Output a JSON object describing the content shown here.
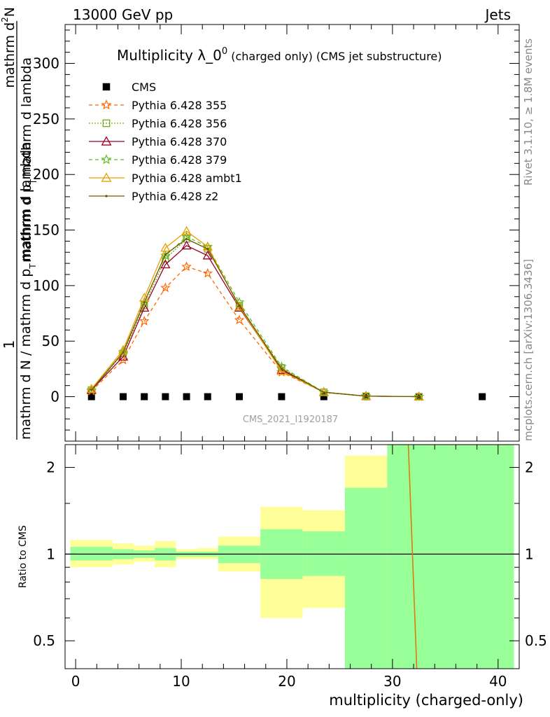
{
  "header": {
    "energy": "13000 GeV pp",
    "category": "Jets",
    "rivet_version": "Rivet 3.1.10, ≥ 1.8M events",
    "mcplots": "mcplots.cern.ch [arXiv:1306.3436]",
    "analysis_id": "CMS_2021_I1920187"
  },
  "chart_data": [
    {
      "panel": "main",
      "type": "scatter",
      "title": {
        "main": "Multiplicity λ_0",
        "sup": "0",
        "detail": " (charged only) (CMS jet substructure)"
      },
      "ylabel": {
        "fraction_numerator": "1",
        "fraction_denominator": "mathrm d N / mathrm d p",
        "denominator_sub": "T",
        "denominator_tail": "mathrm d lambda",
        "numerator_top": "mathrm d",
        "numerator_sup": "2",
        "numerator_N": "N",
        "numerator_mid": "mathrm d p",
        "numerator_sub": "T",
        "numerator_tail": "mathrm d lambda"
      },
      "xlim": [
        -1,
        42
      ],
      "ylim": [
        -40,
        335
      ],
      "yticks": [
        0,
        50,
        100,
        150,
        200,
        250,
        300
      ],
      "xticks": [
        0,
        10,
        20,
        30,
        40
      ],
      "legend_position": "top-left",
      "series": [
        {
          "name": "CMS",
          "color": "#000000",
          "marker": "square",
          "x": [
            1.5,
            4.5,
            6.5,
            8.5,
            10.5,
            12.5,
            15.5,
            19.5,
            23.5,
            27.5,
            32.5,
            38.5
          ],
          "y": [
            0,
            0,
            0,
            0,
            0,
            0,
            0,
            0,
            0,
            0,
            0,
            0
          ]
        },
        {
          "name": "Pythia 6.428 355",
          "color": "#ff6600",
          "marker": "star",
          "dash": "5,4",
          "x": [
            1.5,
            4.5,
            6.5,
            8.5,
            10.5,
            12.5,
            15.5,
            19.5,
            23.5,
            27.5,
            32.5
          ],
          "y": [
            5,
            33,
            68,
            98,
            117,
            111,
            69,
            22,
            4,
            0.5,
            0
          ]
        },
        {
          "name": "Pythia 6.428 356",
          "color": "#7aa61e",
          "marker": "open-square",
          "dash": "2,2",
          "x": [
            1.5,
            4.5,
            6.5,
            8.5,
            10.5,
            12.5,
            15.5,
            19.5,
            23.5,
            27.5,
            32.5
          ],
          "y": [
            6,
            39,
            82,
            124,
            142,
            133,
            82,
            26,
            4,
            0.5,
            0
          ]
        },
        {
          "name": "Pythia 6.428 370",
          "color": "#990022",
          "marker": "open-triangle",
          "dash": "",
          "x": [
            1.5,
            4.5,
            6.5,
            8.5,
            10.5,
            12.5,
            15.5,
            19.5,
            23.5,
            27.5,
            32.5
          ],
          "y": [
            6,
            36,
            80,
            119,
            136,
            127,
            80,
            24,
            4,
            0.5,
            0
          ]
        },
        {
          "name": "Pythia 6.428 379",
          "color": "#66bb22",
          "marker": "star",
          "dash": "5,4",
          "x": [
            1.5,
            4.5,
            6.5,
            8.5,
            10.5,
            12.5,
            15.5,
            19.5,
            23.5,
            27.5,
            32.5
          ],
          "y": [
            6,
            40,
            85,
            127,
            144,
            135,
            85,
            27,
            4,
            0.5,
            0
          ]
        },
        {
          "name": "Pythia 6.428 ambt1",
          "color": "#e8a000",
          "marker": "open-triangle",
          "dash": "",
          "x": [
            1.5,
            4.5,
            6.5,
            8.5,
            10.5,
            12.5,
            15.5,
            19.5,
            23.5,
            27.5,
            32.5
          ],
          "y": [
            7,
            42,
            89,
            134,
            149,
            135,
            81,
            23,
            4,
            0.5,
            0
          ]
        },
        {
          "name": "Pythia 6.428 z2",
          "color": "#6b5a00",
          "marker": "dot",
          "dash": "",
          "x": [
            1.5,
            4.5,
            6.5,
            8.5,
            10.5,
            12.5,
            15.5,
            19.5,
            23.5,
            27.5,
            32.5
          ],
          "y": [
            6,
            40,
            85,
            128,
            142,
            133,
            82,
            25,
            4,
            0.5,
            0
          ]
        }
      ]
    },
    {
      "panel": "ratio",
      "type": "area",
      "ylabel": "Ratio to CMS",
      "xlabel": "multiplicity (charged-only)",
      "xlim": [
        -1,
        42
      ],
      "ylim": [
        0.4,
        2.4
      ],
      "yscale": "log",
      "yticks": [
        0.5,
        1,
        2
      ],
      "yticklabels": [
        "0.5",
        "1",
        "2"
      ],
      "xticks": [
        0,
        10,
        20,
        30,
        40
      ],
      "bands": [
        {
          "x0": -0.5,
          "x1": 3.5,
          "total": [
            0.9,
            1.12
          ],
          "stat": [
            0.95,
            1.06
          ]
        },
        {
          "x0": 3.5,
          "x1": 5.5,
          "total": [
            0.92,
            1.09
          ],
          "stat": [
            0.96,
            1.04
          ]
        },
        {
          "x0": 5.5,
          "x1": 7.5,
          "total": [
            0.94,
            1.07
          ],
          "stat": [
            0.97,
            1.03
          ]
        },
        {
          "x0": 7.5,
          "x1": 9.5,
          "total": [
            0.9,
            1.11
          ],
          "stat": [
            0.95,
            1.05
          ]
        },
        {
          "x0": 9.5,
          "x1": 11.5,
          "total": [
            0.96,
            1.04
          ],
          "stat": [
            0.98,
            1.02
          ]
        },
        {
          "x0": 11.5,
          "x1": 13.5,
          "total": [
            0.96,
            1.05
          ],
          "stat": [
            0.98,
            1.02
          ]
        },
        {
          "x0": 13.5,
          "x1": 17.5,
          "total": [
            0.87,
            1.15
          ],
          "stat": [
            0.93,
            1.07
          ]
        },
        {
          "x0": 17.5,
          "x1": 21.5,
          "total": [
            0.6,
            1.46
          ],
          "stat": [
            0.82,
            1.22
          ]
        },
        {
          "x0": 21.5,
          "x1": 25.5,
          "total": [
            0.65,
            1.42
          ],
          "stat": [
            0.84,
            1.2
          ]
        },
        {
          "x0": 25.5,
          "x1": 29.5,
          "total": [
            0.3,
            2.2
          ],
          "stat": [
            0.3,
            1.7
          ]
        },
        {
          "x0": 29.5,
          "x1": 41.5,
          "total": [
            0.3,
            3.0
          ],
          "stat": [
            0.3,
            3.0
          ]
        }
      ],
      "ratio_line": {
        "color": "#e07a10",
        "x": [
          31.5,
          32.3
        ],
        "y": [
          2.4,
          0.4
        ]
      }
    }
  ]
}
